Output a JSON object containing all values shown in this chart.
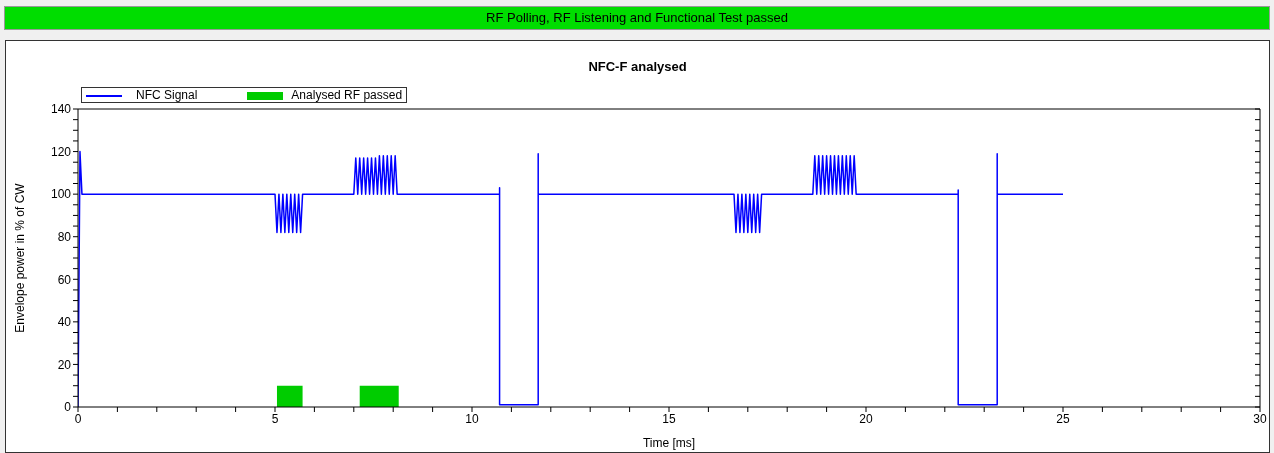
{
  "chart_data": {
    "type": "line",
    "title": "NFC-F analysed",
    "annotations": [
      "RF Polling, RF Listening and Functional Test passed"
    ],
    "xlabel": "Time [ms]",
    "ylabel": "Envelope power in % of CW",
    "legend": "top left",
    "xlim": [
      0,
      30
    ],
    "xticks": [
      0,
      {
        "value": 1,
        "label": null
      },
      {
        "value": 2,
        "label": null
      },
      {
        "value": 3,
        "label": null
      },
      {
        "value": 4,
        "label": null
      },
      5,
      {
        "value": 6,
        "label": null
      },
      {
        "value": 7,
        "label": null
      },
      {
        "value": 8,
        "label": null
      },
      {
        "value": 9,
        "label": null
      },
      10,
      {
        "value": 11,
        "label": null
      },
      {
        "value": 12,
        "label": null
      },
      {
        "value": 13,
        "label": null
      },
      {
        "value": 14,
        "label": null
      },
      15,
      {
        "value": 16,
        "label": null
      },
      {
        "value": 17,
        "label": null
      },
      {
        "value": 18,
        "label": null
      },
      {
        "value": 19,
        "label": null
      },
      20,
      {
        "value": 21,
        "label": null
      },
      {
        "value": 22,
        "label": null
      },
      {
        "value": 23,
        "label": null
      },
      {
        "value": 24,
        "label": null
      },
      25,
      {
        "value": 26,
        "label": null
      },
      {
        "value": 27,
        "label": null
      },
      {
        "value": 28,
        "label": null
      },
      {
        "value": 29,
        "label": null
      },
      30
    ],
    "ylim": [
      0,
      140
    ],
    "yticks": [
      0,
      {
        "value": 5,
        "label": null
      },
      {
        "value": 10,
        "label": null
      },
      {
        "value": 15,
        "label": null
      },
      20,
      {
        "value": 25,
        "label": null
      },
      {
        "value": 30,
        "label": null
      },
      {
        "value": 35,
        "label": null
      },
      40,
      {
        "value": 45,
        "label": null
      },
      {
        "value": 50,
        "label": null
      },
      {
        "value": 55,
        "label": null
      },
      60,
      {
        "value": 65,
        "label": null
      },
      {
        "value": 70,
        "label": null
      },
      {
        "value": 75,
        "label": null
      },
      80,
      {
        "value": 85,
        "label": null
      },
      {
        "value": 90,
        "label": null
      },
      {
        "value": 95,
        "label": null
      },
      100,
      {
        "value": 105,
        "label": null
      },
      {
        "value": 110,
        "label": null
      },
      {
        "value": 115,
        "label": null
      },
      120,
      {
        "value": 125,
        "label": null
      },
      {
        "value": 130,
        "label": null
      },
      {
        "value": 135,
        "label": null
      },
      140
    ],
    "series": [
      {
        "name": "NFC Signal",
        "color": "#0000ff",
        "x": [
          0,
          0.05,
          0.1,
          5.0,
          5.05,
          5.1,
          5.15,
          5.2,
          5.25,
          5.3,
          5.35,
          5.4,
          5.45,
          5.5,
          5.55,
          5.6,
          5.65,
          5.7,
          7.0,
          7.05,
          7.1,
          7.15,
          7.2,
          7.25,
          7.3,
          7.35,
          7.4,
          7.45,
          7.5,
          7.55,
          7.6,
          7.65,
          7.7,
          7.75,
          7.8,
          7.85,
          7.9,
          7.95,
          8.0,
          8.05,
          8.1,
          10.7,
          10.7,
          10.7,
          11.68,
          11.68,
          11.68,
          16.65,
          16.7,
          16.75,
          16.8,
          16.85,
          16.9,
          16.95,
          17.0,
          17.05,
          17.1,
          17.15,
          17.2,
          17.25,
          17.3,
          17.35,
          18.65,
          18.7,
          18.75,
          18.8,
          18.85,
          18.9,
          18.95,
          19.0,
          19.05,
          19.1,
          19.15,
          19.2,
          19.25,
          19.3,
          19.35,
          19.4,
          19.45,
          19.5,
          19.55,
          19.6,
          19.65,
          19.7,
          19.75,
          22.34,
          22.34,
          22.34,
          23.33,
          23.33,
          23.33,
          25
        ],
        "values": [
          0,
          120,
          100,
          100,
          82,
          100,
          82,
          100,
          82,
          100,
          82,
          100,
          82,
          100,
          82,
          100,
          82,
          100,
          100,
          117,
          100,
          117,
          100,
          117,
          100,
          117,
          100,
          117,
          100,
          117,
          100,
          118,
          100,
          118,
          100,
          118,
          100,
          118,
          100,
          118,
          100,
          100,
          103,
          1,
          1,
          119,
          100,
          100,
          82,
          100,
          82,
          100,
          82,
          100,
          82,
          100,
          82,
          100,
          82,
          100,
          82,
          100,
          100,
          118,
          100,
          118,
          100,
          118,
          100,
          118,
          100,
          118,
          100,
          118,
          100,
          118,
          100,
          118,
          100,
          118,
          100,
          118,
          100,
          118,
          100,
          100,
          102,
          1,
          1,
          119,
          100,
          100
        ]
      },
      {
        "name": "Analysed RF passed",
        "type": "area",
        "color": "#00cc00",
        "x": [
          5.05,
          5.7,
          6.4,
          7.15,
          8.14
        ],
        "values": [
          10,
          10,
          null,
          10,
          10
        ]
      }
    ]
  }
}
